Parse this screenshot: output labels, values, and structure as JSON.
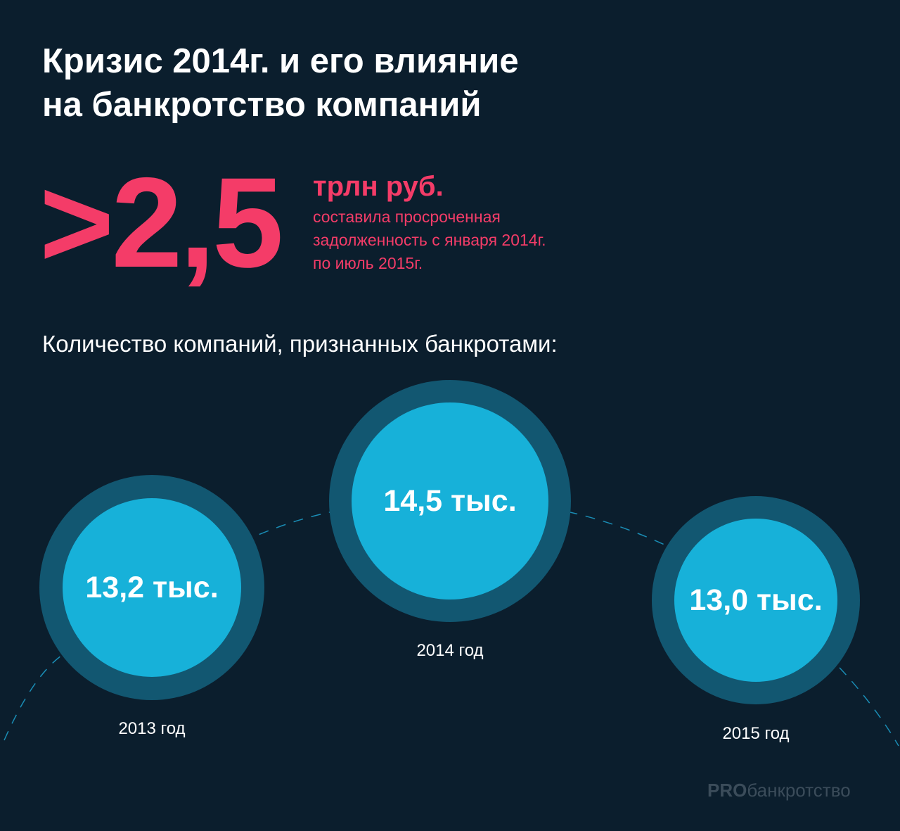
{
  "title": {
    "line1": "Кризис 2014г. и его влияние",
    "line2": "на банкротство компаний"
  },
  "stat": {
    "value": ">2,5",
    "unit": "трлн руб.",
    "desc_line1": "составила просроченная",
    "desc_line2": "задолженность с января 2014г.",
    "desc_line3": "по июль 2015г."
  },
  "subtitle": "Количество компаний, признанных банкротами:",
  "bubbles": [
    {
      "value": "13,2 тыс.",
      "year": "2013 год"
    },
    {
      "value": "14,5 тыс.",
      "year": "2014 год"
    },
    {
      "value": "13,0 тыс.",
      "year": "2015 год"
    }
  ],
  "logo": {
    "bold": "PRO",
    "rest": "банкротство"
  },
  "colors": {
    "background": "#0b1e2d",
    "accent_pink": "#f43c68",
    "bubble_outer": "#125771",
    "bubble_inner": "#17b1d9"
  }
}
